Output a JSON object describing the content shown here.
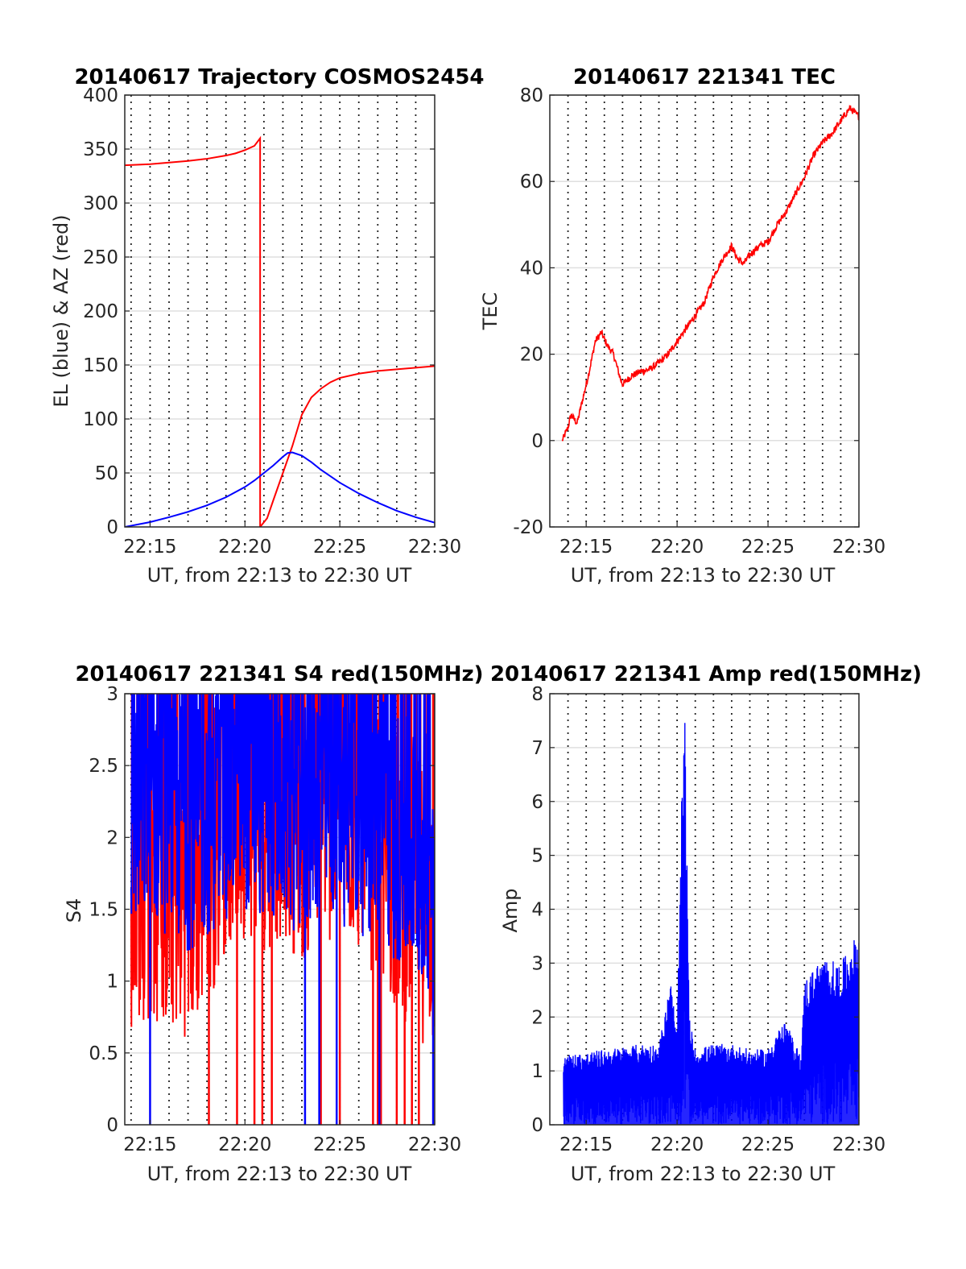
{
  "figure": {
    "background": "#ffffff"
  },
  "colors": {
    "red": "#ff0000",
    "blue": "#0000ff"
  },
  "chart_data": [
    {
      "id": "trajectory",
      "type": "line",
      "title": "20140617 Trajectory COSMOS2454",
      "xlabel": "UT, from 22:13 to 22:30 UT",
      "ylabel": "EL (blue) & AZ (red)",
      "xlim": [
        "22:13:40",
        "22:30:00"
      ],
      "ylim": [
        0,
        400
      ],
      "yticks": [
        0,
        50,
        100,
        150,
        200,
        250,
        300,
        350,
        400
      ],
      "xticks": [
        "22:15",
        "22:20",
        "22:25",
        "22:30"
      ],
      "x_minor_grid": "every 1 minute, dotted",
      "y_grid": true,
      "series": [
        {
          "color": "#ff0000",
          "kind": "smooth",
          "x": [
            "22:13:40",
            "22:15:00",
            "22:16:00",
            "22:17:00",
            "22:18:00",
            "22:19:00",
            "22:19:30",
            "22:20:00",
            "22:20:30",
            "22:20:48",
            "22:20:48",
            "22:21:10",
            "22:21:30",
            "22:22:00",
            "22:22:30",
            "22:23:00",
            "22:23:30",
            "22:24:00",
            "22:24:30",
            "22:25:00",
            "22:26:00",
            "22:27:00",
            "22:28:00",
            "22:29:00",
            "22:30:00"
          ],
          "y": [
            335,
            336,
            337.5,
            339,
            341,
            344,
            346,
            349,
            353,
            360,
            0,
            8,
            25,
            50,
            75,
            104,
            120,
            128,
            134,
            138,
            142,
            144.5,
            146,
            147.5,
            149
          ]
        },
        {
          "color": "#0000ff",
          "kind": "smooth",
          "x": [
            "22:13:40",
            "22:15:00",
            "22:16:00",
            "22:17:00",
            "22:18:00",
            "22:19:00",
            "22:20:00",
            "22:20:30",
            "22:21:00",
            "22:21:30",
            "22:22:00",
            "22:22:15",
            "22:22:30",
            "22:23:00",
            "22:23:30",
            "22:24:00",
            "22:25:00",
            "22:26:00",
            "22:27:00",
            "22:28:00",
            "22:29:00",
            "22:30:00"
          ],
          "y": [
            0,
            4.5,
            9,
            14,
            20,
            27.5,
            37,
            43,
            50,
            57,
            65,
            68.5,
            69,
            66,
            60,
            53,
            41,
            31,
            22.5,
            15,
            9,
            4
          ]
        }
      ]
    },
    {
      "id": "tec",
      "type": "line",
      "title": "20140617 221341 TEC",
      "xlabel": "UT, from 22:13 to 22:30 UT",
      "ylabel": "TEC",
      "xlim": [
        "22:13:00",
        "22:30:00"
      ],
      "ylim": [
        -20,
        80
      ],
      "yticks": [
        -20,
        0,
        20,
        40,
        60,
        80
      ],
      "xticks": [
        "22:15",
        "22:20",
        "22:25",
        "22:30"
      ],
      "x_minor_grid": "every 1 minute, dotted",
      "y_grid": true,
      "series": [
        {
          "color": "#ff0000",
          "kind": "noisy",
          "noise": 0.8,
          "x": [
            "22:13:41",
            "22:14:00",
            "22:14:10",
            "22:14:30",
            "22:14:50",
            "22:15:10",
            "22:15:30",
            "22:15:50",
            "22:16:10",
            "22:16:30",
            "22:16:50",
            "22:17:00",
            "22:17:30",
            "22:18:00",
            "22:18:30",
            "22:19:00",
            "22:19:30",
            "22:20:00",
            "22:20:30",
            "22:21:00",
            "22:21:30",
            "22:22:00",
            "22:22:30",
            "22:23:00",
            "22:23:20",
            "22:23:40",
            "22:24:00",
            "22:24:30",
            "22:25:00",
            "22:25:30",
            "22:26:00",
            "22:26:30",
            "22:27:00",
            "22:27:30",
            "22:28:00",
            "22:28:30",
            "22:29:00",
            "22:29:30",
            "22:29:45",
            "22:30:00"
          ],
          "y": [
            0,
            3,
            6,
            4,
            10,
            16,
            23,
            25,
            22,
            20,
            15,
            13,
            15,
            16,
            16.5,
            18,
            20,
            23,
            26,
            29,
            32,
            38,
            42,
            45,
            42,
            41,
            43,
            45,
            46,
            50,
            53,
            57,
            61,
            66,
            69,
            71,
            74,
            77,
            76,
            75
          ]
        }
      ]
    },
    {
      "id": "s4",
      "type": "line",
      "title": "20140617 221341 S4 red(150MHz)",
      "xlabel": "UT, from 22:13 to 22:30 UT",
      "ylabel": "S4",
      "xlim": [
        "22:13:40",
        "22:30:00"
      ],
      "ylim": [
        0,
        3
      ],
      "yticks": [
        0,
        0.5,
        1,
        1.5,
        2,
        2.5,
        3
      ],
      "xticks": [
        "22:15",
        "22:20",
        "22:25",
        "22:30"
      ],
      "x_minor_grid": "every 1 minute, dotted",
      "y_grid": true,
      "series": [
        {
          "color": "#ff0000",
          "kind": "spiky",
          "x": [
            "22:14:00",
            "22:15:00",
            "22:16:00",
            "22:17:00",
            "22:18:00",
            "22:19:00",
            "22:20:00",
            "22:21:00",
            "22:22:00",
            "22:23:00",
            "22:24:00",
            "22:25:00",
            "22:26:00",
            "22:27:00",
            "22:28:00",
            "22:29:00",
            "22:30:00"
          ],
          "y": [
            1.6,
            1.7,
            1.65,
            1.6,
            1.8,
            2.2,
            2.3,
            2.2,
            2.3,
            2.1,
            2.3,
            2.2,
            2.2,
            2.0,
            1.8,
            1.6,
            1.5
          ],
          "spread": 1.0,
          "dropouts": [
            "22:18:06",
            "22:19:35",
            "22:20:30",
            "22:20:55",
            "22:21:25",
            "22:24:00",
            "22:25:00",
            "22:26:45",
            "22:27:00",
            "22:27:10",
            "22:28:00",
            "22:28:25",
            "22:28:48",
            "22:29:10"
          ]
        },
        {
          "color": "#0000ff",
          "kind": "spiky",
          "x": [
            "22:14:00",
            "22:15:00",
            "22:16:00",
            "22:17:00",
            "22:18:00",
            "22:19:00",
            "22:20:00",
            "22:21:00",
            "22:22:00",
            "22:23:00",
            "22:24:00",
            "22:25:00",
            "22:26:00",
            "22:27:00",
            "22:28:00",
            "22:29:00",
            "22:30:00"
          ],
          "y": [
            2.2,
            2.3,
            2.2,
            2.1,
            2.2,
            2.3,
            2.4,
            2.3,
            2.3,
            2.2,
            2.4,
            2.3,
            2.2,
            2.2,
            2.0,
            1.9,
            1.8
          ],
          "spread": 0.9,
          "dropouts": [
            "22:15:00",
            "22:23:10",
            "22:23:55",
            "22:24:50",
            "22:27:05",
            "22:29:55"
          ]
        }
      ]
    },
    {
      "id": "amp",
      "type": "line",
      "title": "20140617 221341 Amp red(150MHz)",
      "xlabel": "UT, from 22:13 to 22:30 UT",
      "ylabel": "Amp",
      "xlim": [
        "22:13:00",
        "22:30:00"
      ],
      "ylim": [
        0,
        8
      ],
      "yticks": [
        0,
        1,
        2,
        3,
        4,
        5,
        6,
        7,
        8
      ],
      "xticks": [
        "22:15",
        "22:20",
        "22:25",
        "22:30"
      ],
      "x_minor_grid": "every 1 minute, dotted",
      "y_grid": true,
      "series": [
        {
          "color": "#0000ff",
          "kind": "envelope",
          "x": [
            "22:13:45",
            "22:15:00",
            "22:16:00",
            "22:17:00",
            "22:18:00",
            "22:19:00",
            "22:19:40",
            "22:20:00",
            "22:20:15",
            "22:20:25",
            "22:20:40",
            "22:21:00",
            "22:22:00",
            "22:23:00",
            "22:24:00",
            "22:25:00",
            "22:25:30",
            "22:26:00",
            "22:26:30",
            "22:26:50",
            "22:27:00",
            "22:28:00",
            "22:29:00",
            "22:30:00"
          ],
          "y": [
            1.3,
            1.35,
            1.4,
            1.45,
            1.5,
            1.5,
            2.7,
            1.6,
            6.1,
            7.9,
            2.0,
            1.4,
            1.5,
            1.5,
            1.4,
            1.4,
            1.8,
            1.9,
            1.5,
            1.3,
            2.7,
            3.1,
            3.0,
            3.6
          ]
        }
      ]
    }
  ]
}
